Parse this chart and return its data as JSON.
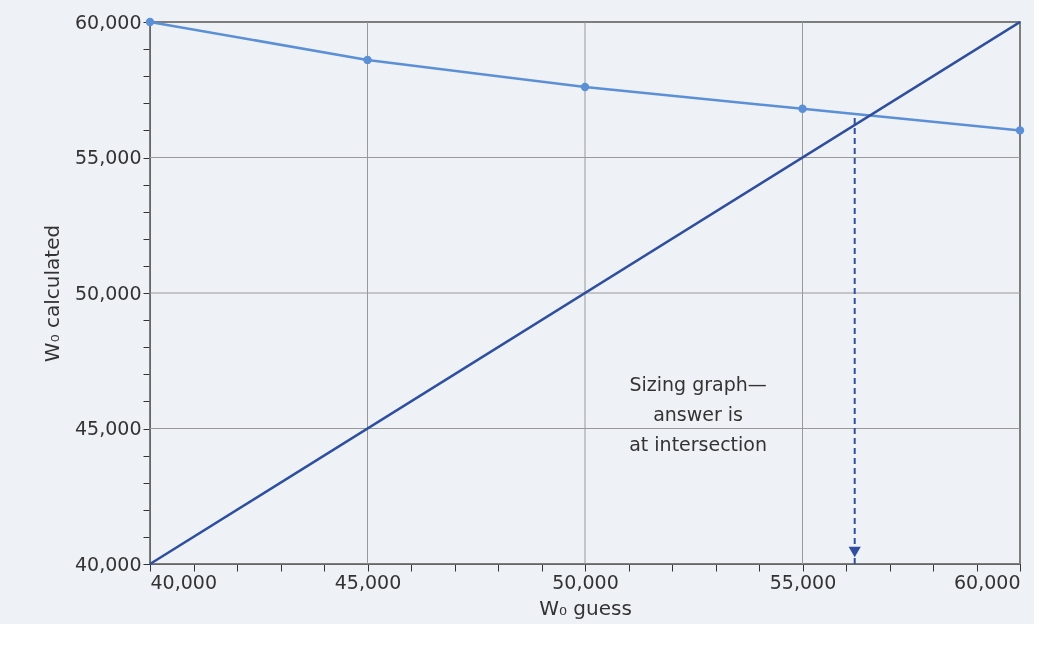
{
  "chart_data": {
    "type": "line",
    "xlabel": "W₀ guess",
    "ylabel": "W₀ calculated",
    "x": [
      40000,
      45000,
      50000,
      55000,
      60000
    ],
    "series": [
      {
        "color": "#5b8fd6",
        "values": [
          60000,
          58600,
          57600,
          56800,
          56000
        ],
        "marker": "circle"
      },
      {
        "color": "#2f4f9e",
        "x": [
          40000,
          60000
        ],
        "values": [
          40000,
          60000
        ],
        "marker": "none"
      }
    ],
    "xlim": [
      40000,
      60000
    ],
    "ylim": [
      40000,
      60000
    ],
    "xticks": [
      {
        "value": 40000,
        "label": "40,000"
      },
      {
        "value": 41000,
        "label": null
      },
      {
        "value": 42000,
        "label": null
      },
      {
        "value": 43000,
        "label": null
      },
      {
        "value": 44000,
        "label": null
      },
      {
        "value": 45000,
        "label": "45,000"
      },
      {
        "value": 46000,
        "label": null
      },
      {
        "value": 47000,
        "label": null
      },
      {
        "value": 48000,
        "label": null
      },
      {
        "value": 49000,
        "label": null
      },
      {
        "value": 50000,
        "label": "50,000"
      },
      {
        "value": 51000,
        "label": null
      },
      {
        "value": 52000,
        "label": null
      },
      {
        "value": 53000,
        "label": null
      },
      {
        "value": 54000,
        "label": null
      },
      {
        "value": 55000,
        "label": "55,000"
      },
      {
        "value": 56000,
        "label": null
      },
      {
        "value": 57000,
        "label": null
      },
      {
        "value": 58000,
        "label": null
      },
      {
        "value": 59000,
        "label": null
      },
      {
        "value": 60000,
        "label": "60,000"
      }
    ],
    "yticks": [
      {
        "value": 40000,
        "label": "40,000"
      },
      {
        "value": 41000,
        "label": null
      },
      {
        "value": 42000,
        "label": null
      },
      {
        "value": 43000,
        "label": null
      },
      {
        "value": 44000,
        "label": null
      },
      {
        "value": 45000,
        "label": "45,000"
      },
      {
        "value": 46000,
        "label": null
      },
      {
        "value": 47000,
        "label": null
      },
      {
        "value": 48000,
        "label": null
      },
      {
        "value": 49000,
        "label": null
      },
      {
        "value": 50000,
        "label": "50,000"
      },
      {
        "value": 51000,
        "label": null
      },
      {
        "value": 52000,
        "label": null
      },
      {
        "value": 53000,
        "label": null
      },
      {
        "value": 54000,
        "label": null
      },
      {
        "value": 55000,
        "label": "55,000"
      },
      {
        "value": 56000,
        "label": null
      },
      {
        "value": 57000,
        "label": null
      },
      {
        "value": 58000,
        "label": null
      },
      {
        "value": 59000,
        "label": null
      },
      {
        "value": 60000,
        "label": "60,000"
      }
    ],
    "grid": true,
    "ref_lines": [
      {
        "axis": "x",
        "value": 56200,
        "color": "#2f4f9e",
        "line_style": "dashed"
      }
    ],
    "annotations": [
      "Sizing graph—\nanswer is\nat intersection"
    ]
  }
}
